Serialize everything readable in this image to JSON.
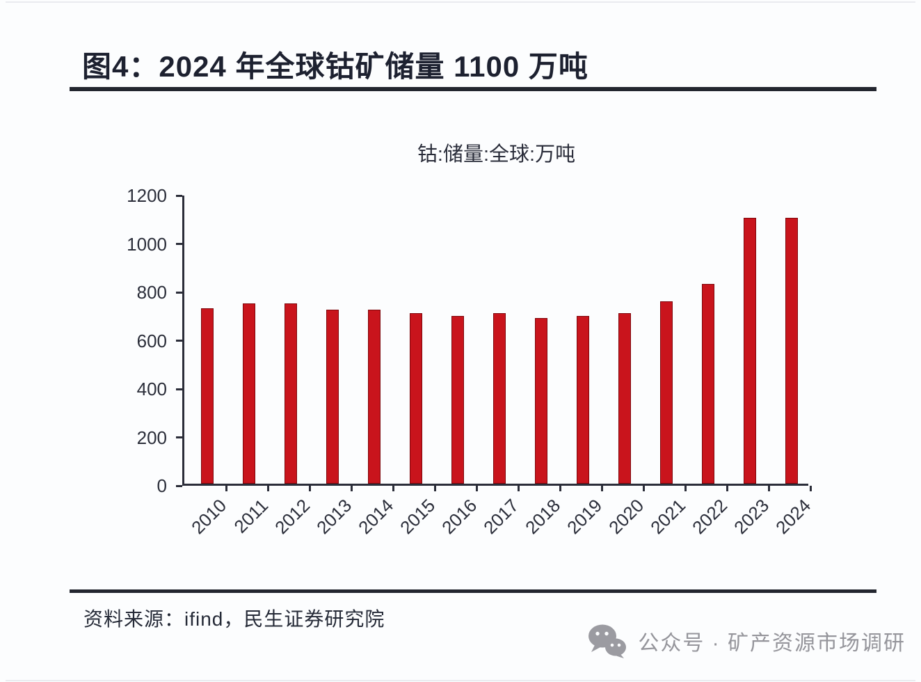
{
  "header": {
    "title": "图4：2024 年全球钴矿储量 1100 万吨"
  },
  "footer": {
    "source": "资料来源：ifind，民生证券研究院",
    "watermark_icon": "wechat-icon",
    "watermark_text": "公众号 · 矿产资源市场调研"
  },
  "colors": {
    "bar_fill": "#c9141c",
    "bar_edge": "#7e060b",
    "axis": "#2b2d39",
    "rule": "#23262f",
    "title_text": "#1d2130",
    "watermark_gray": "#95959b",
    "background": "#fcfdfe"
  },
  "chart_data": {
    "type": "bar",
    "title": "钴:储量:全球:万吨",
    "categories": [
      "2010",
      "2011",
      "2012",
      "2013",
      "2014",
      "2015",
      "2016",
      "2017",
      "2018",
      "2019",
      "2020",
      "2021",
      "2022",
      "2023",
      "2024"
    ],
    "values": [
      725,
      745,
      745,
      720,
      720,
      705,
      695,
      705,
      685,
      695,
      705,
      755,
      825,
      1100,
      1100
    ],
    "xlabel": "",
    "ylabel": "",
    "ylim": [
      0,
      1200
    ],
    "yticks": [
      0,
      200,
      400,
      600,
      800,
      1000,
      1200
    ],
    "grid": false,
    "legend": "none",
    "bar_color": "#c9141c",
    "x_tick_label_rotation_deg": 45
  }
}
